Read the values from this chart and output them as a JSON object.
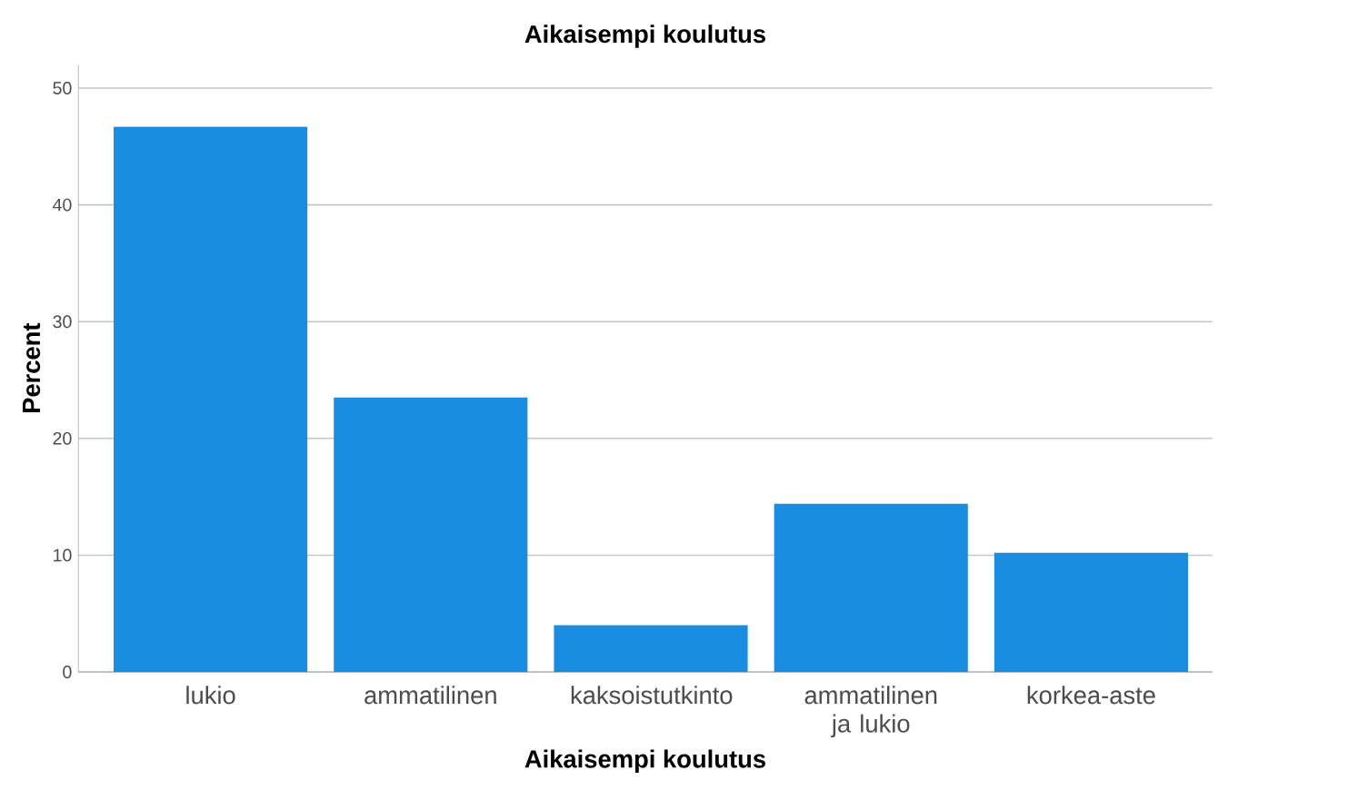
{
  "chart_data": {
    "type": "bar",
    "title": "Aikaisempi koulutus",
    "xlabel": "Aikaisempi koulutus",
    "ylabel": "Percent",
    "categories": [
      "lukio",
      "ammatilinen",
      "kaksoistutkinto",
      "ammatilinen ja lukio",
      "korkea-aste"
    ],
    "values": [
      46.7,
      23.5,
      4.0,
      14.4,
      10.2
    ],
    "color": "#1a8de0",
    "ylim": [
      0,
      52
    ],
    "yticks": [
      0,
      10,
      20,
      30,
      40,
      50
    ],
    "grid": "y"
  }
}
